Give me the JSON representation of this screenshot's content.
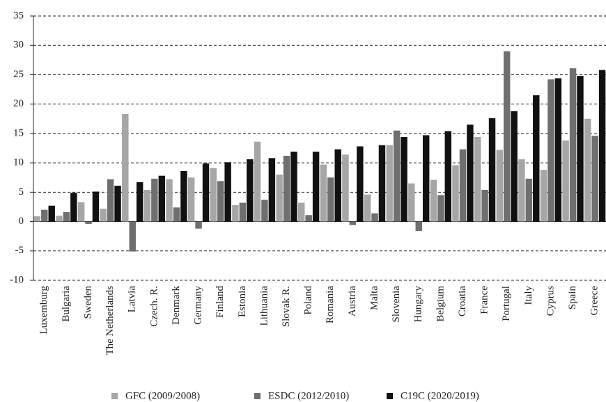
{
  "chart_data": {
    "type": "bar",
    "categories": [
      "Luxemburg",
      "Bulgaria",
      "Sweden",
      "The Netherlands",
      "Latvia",
      "Czech. R.",
      "Denmark",
      "Germany",
      "Finland",
      "Estonia",
      "Lithuania",
      "Slovak R.",
      "Poland",
      "Romania",
      "Austria",
      "Malta",
      "Slovenia",
      "Hungary",
      "Belgium",
      "Croatia",
      "France",
      "Portugal",
      "Italy",
      "Cyprus",
      "Spain",
      "Greece"
    ],
    "series": [
      {
        "name": "GFC (2009/2008)",
        "color": "#a6a6a6",
        "values": [
          0.9,
          1.0,
          3.3,
          2.2,
          18.3,
          5.4,
          7.2,
          7.5,
          9.1,
          2.8,
          13.6,
          8.0,
          3.2,
          9.7,
          11.4,
          4.6,
          13.0,
          6.5,
          7.1,
          9.6,
          14.4,
          12.2,
          10.6,
          8.8,
          13.8,
          17.5
        ]
      },
      {
        "name": "ESDC (2012/2010)",
        "color": "#6f6f6f",
        "values": [
          2.0,
          1.6,
          -0.4,
          7.2,
          -5.1,
          7.3,
          2.4,
          -1.2,
          6.9,
          3.2,
          3.7,
          11.2,
          1.1,
          7.5,
          -0.6,
          1.4,
          15.5,
          -1.6,
          4.5,
          12.3,
          5.4,
          29.0,
          7.3,
          24.2,
          26.1,
          14.6
        ]
      },
      {
        "name": "C19C (2020/2019)",
        "color": "#111111",
        "values": [
          2.7,
          4.9,
          5.1,
          6.1,
          6.7,
          7.8,
          8.6,
          9.9,
          10.1,
          10.6,
          10.8,
          11.9,
          11.9,
          12.3,
          12.8,
          13.0,
          14.4,
          14.7,
          15.4,
          16.5,
          17.6,
          18.8,
          21.5,
          24.4,
          24.8,
          25.8
        ]
      }
    ],
    "ylim": [
      -10,
      35
    ],
    "yticks": [
      -10,
      -5,
      0,
      5,
      10,
      15,
      20,
      25,
      30,
      35
    ],
    "grid": true,
    "legend": "bottom"
  }
}
